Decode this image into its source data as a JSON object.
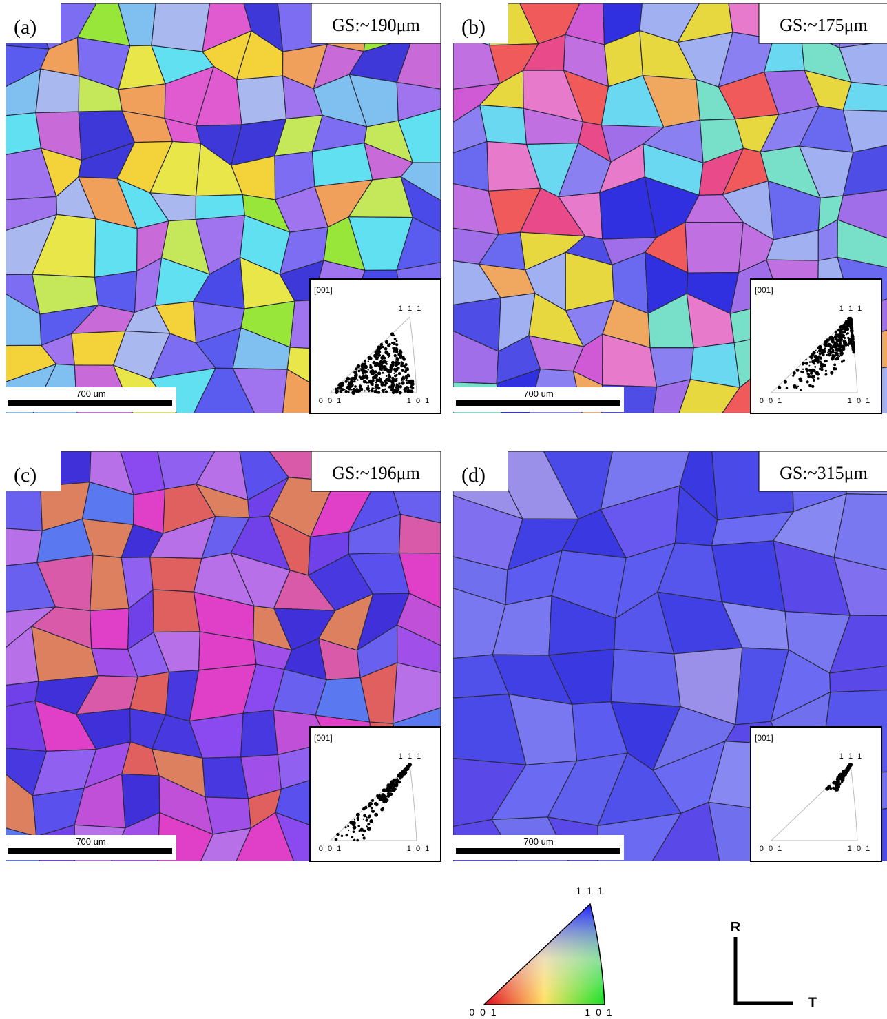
{
  "panels": [
    {
      "label": "(a)",
      "grain_size": "GS:~190μm",
      "scale_bar": "700 um",
      "inset": {
        "direction": "[001]",
        "corner_111": "1 1 1",
        "corner_001": "0 0 1",
        "corner_101": "1 0 1"
      }
    },
    {
      "label": "(b)",
      "grain_size": "GS:~175μm",
      "scale_bar": "700 um",
      "inset": {
        "direction": "[001]",
        "corner_111": "1 1 1",
        "corner_001": "0 0 1",
        "corner_101": "1 0 1"
      }
    },
    {
      "label": "(c)",
      "grain_size": "GS:~196μm",
      "scale_bar": "700 um",
      "inset": {
        "direction": "[001]",
        "corner_111": "1 1 1",
        "corner_001": "0 0 1",
        "corner_101": "1 0 1"
      }
    },
    {
      "label": "(d)",
      "grain_size": "GS:~315μm",
      "scale_bar": "700 um",
      "inset": {
        "direction": "[001]",
        "corner_111": "1 1 1",
        "corner_001": "0 0 1",
        "corner_101": "1 0 1"
      }
    }
  ],
  "legend": {
    "corner_111": "1 1 1",
    "corner_001": "0 0 1",
    "corner_101": "1 0 1"
  },
  "axes": {
    "vertical": "R",
    "horizontal": "T"
  }
}
